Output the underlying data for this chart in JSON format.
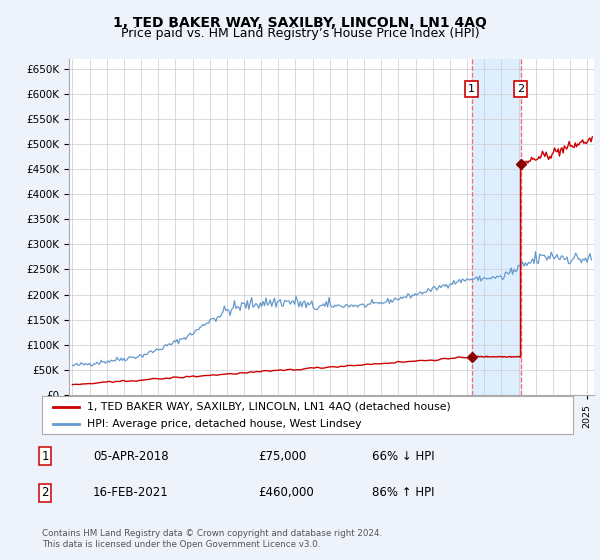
{
  "title": "1, TED BAKER WAY, SAXILBY, LINCOLN, LN1 4AQ",
  "subtitle": "Price paid vs. HM Land Registry’s House Price Index (HPI)",
  "ylim": [
    0,
    670000
  ],
  "yticks": [
    0,
    50000,
    100000,
    150000,
    200000,
    250000,
    300000,
    350000,
    400000,
    450000,
    500000,
    550000,
    600000,
    650000
  ],
  "xlim_start": 1994.8,
  "xlim_end": 2025.4,
  "legend_line1": "1, TED BAKER WAY, SAXILBY, LINCOLN, LN1 4AQ (detached house)",
  "legend_line2": "HPI: Average price, detached house, West Lindsey",
  "annotation1_label": "1",
  "annotation1_date": "05-APR-2018",
  "annotation1_price": "£75,000",
  "annotation1_hpi": "66% ↓ HPI",
  "annotation2_label": "2",
  "annotation2_date": "16-FEB-2021",
  "annotation2_price": "£460,000",
  "annotation2_hpi": "86% ↑ HPI",
  "footer": "Contains HM Land Registry data © Crown copyright and database right 2024.\nThis data is licensed under the Open Government Licence v3.0.",
  "sale1_x": 2018.27,
  "sale1_y": 75000,
  "sale2_x": 2021.12,
  "sale2_y": 460000,
  "red_line_color": "#cc0000",
  "blue_line_color": "#6699cc",
  "vline_color": "#ff6666",
  "dot_color": "#880000",
  "background_color": "#eef2fa",
  "plot_bg": "#ffffff",
  "span_color": "#ddeeff",
  "title_fontsize": 10,
  "subtitle_fontsize": 9
}
